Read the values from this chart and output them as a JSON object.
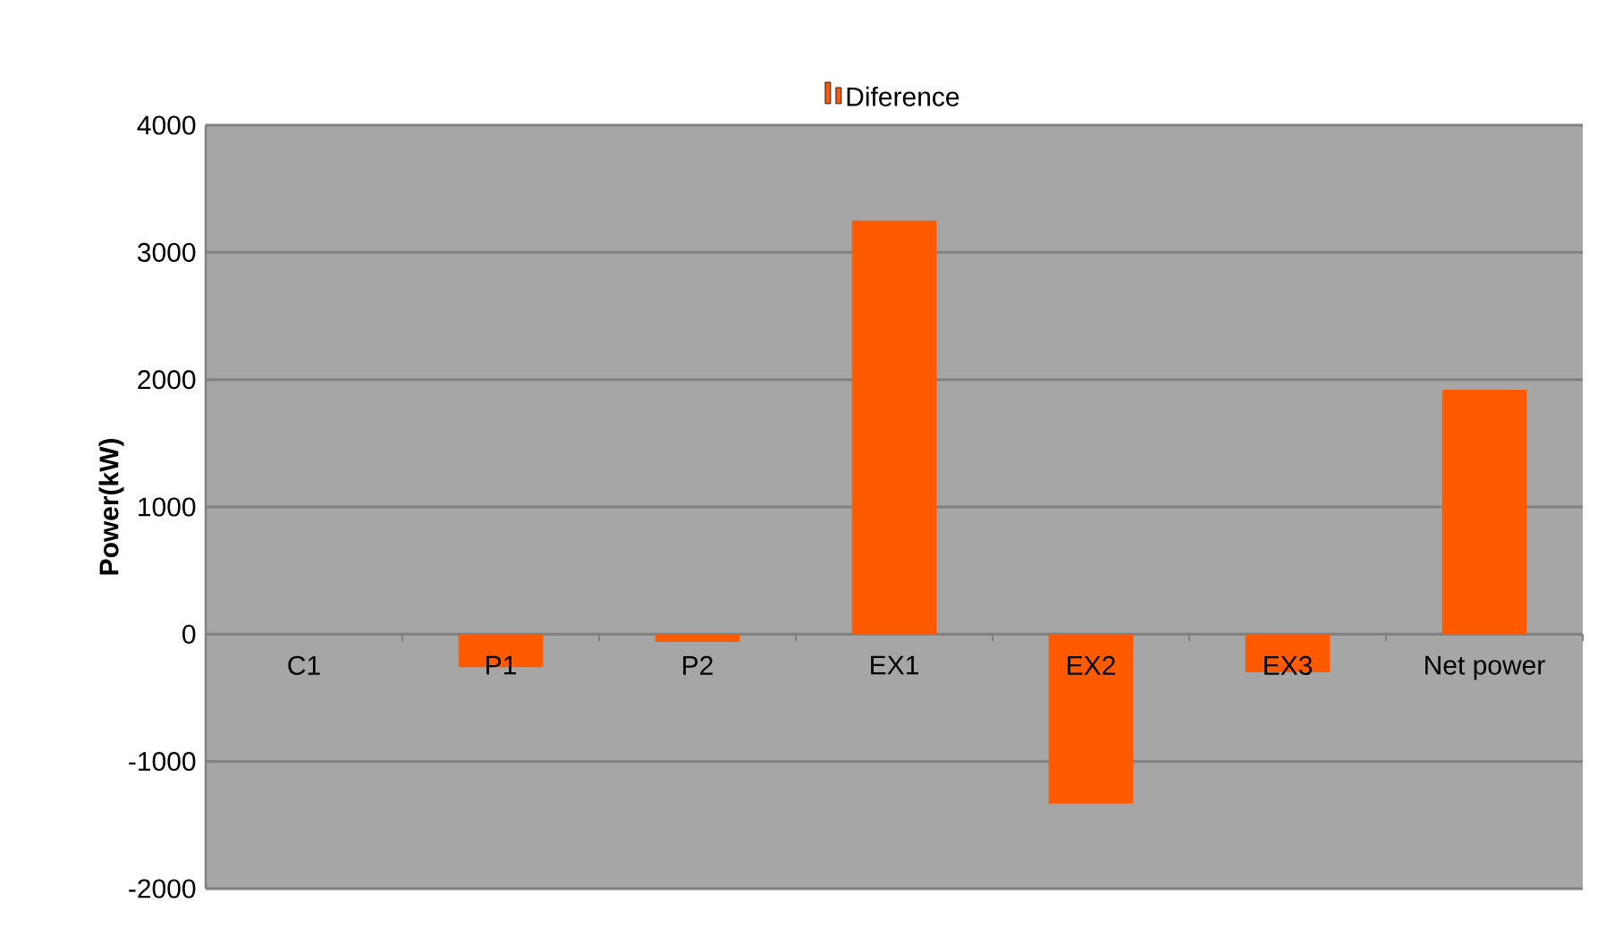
{
  "chart_data": {
    "type": "bar",
    "ylabel": "Power(kW)",
    "categories": [
      "C1",
      "P1",
      "P2",
      "EX1",
      "EX2",
      "EX3",
      "Net power"
    ],
    "series": [
      {
        "name": "Diference",
        "color": "#ff5a00",
        "values": [
          0,
          -260,
          -60,
          3250,
          -1330,
          -300,
          1920
        ]
      }
    ],
    "ylim": [
      -2000,
      4000
    ],
    "yticks": [
      -2000,
      -1000,
      0,
      1000,
      2000,
      3000,
      4000
    ],
    "grid": "y",
    "legend": "top"
  }
}
